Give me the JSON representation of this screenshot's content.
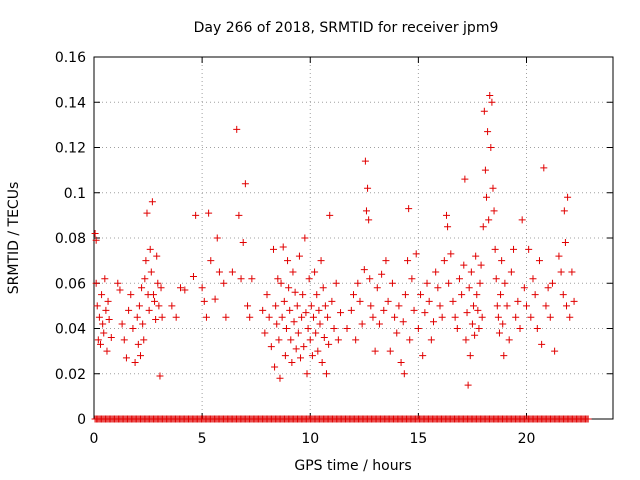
{
  "chart_data": {
    "type": "scatter",
    "title": "Day 266 of 2018, SRMTID for receiver jpm9",
    "xlabel": "GPS time / hours",
    "ylabel": "SRMTID / TECUs",
    "xlim": [
      0,
      24
    ],
    "ylim": [
      0,
      0.16
    ],
    "xticks": [
      0,
      5,
      10,
      15,
      20
    ],
    "xtick_labels": [
      "0",
      "5",
      "10",
      "15",
      "20"
    ],
    "yticks": [
      0,
      0.02,
      0.04,
      0.06,
      0.08,
      0.1,
      0.12,
      0.14,
      0.16
    ],
    "ytick_labels": [
      "0",
      "0.02",
      "0.04",
      "0.06",
      "0.08",
      "0.1",
      "0.12",
      "0.14",
      "0.16"
    ],
    "grid": true,
    "marker": "plus",
    "color": "#e00000",
    "zero_band": {
      "x_start": 0.05,
      "x_end": 22.9,
      "y": 0
    },
    "points": [
      [
        0.05,
        0.082
      ],
      [
        0.1,
        0.079
      ],
      [
        0.1,
        0.06
      ],
      [
        0.15,
        0.05
      ],
      [
        0.2,
        0.035
      ],
      [
        0.25,
        0.045
      ],
      [
        0.3,
        0.033
      ],
      [
        0.35,
        0.055
      ],
      [
        0.4,
        0.042
      ],
      [
        0.45,
        0.038
      ],
      [
        0.5,
        0.062
      ],
      [
        0.55,
        0.048
      ],
      [
        0.6,
        0.03
      ],
      [
        0.65,
        0.052
      ],
      [
        0.7,
        0.044
      ],
      [
        0.8,
        0.036
      ],
      [
        1.1,
        0.06
      ],
      [
        1.2,
        0.057
      ],
      [
        1.3,
        0.042
      ],
      [
        1.4,
        0.035
      ],
      [
        1.5,
        0.027
      ],
      [
        1.6,
        0.048
      ],
      [
        1.7,
        0.055
      ],
      [
        1.8,
        0.04
      ],
      [
        1.9,
        0.025
      ],
      [
        2.0,
        0.045
      ],
      [
        2.05,
        0.033
      ],
      [
        2.1,
        0.05
      ],
      [
        2.15,
        0.028
      ],
      [
        2.2,
        0.058
      ],
      [
        2.25,
        0.042
      ],
      [
        2.3,
        0.035
      ],
      [
        2.35,
        0.062
      ],
      [
        2.4,
        0.07
      ],
      [
        2.45,
        0.091
      ],
      [
        2.5,
        0.055
      ],
      [
        2.55,
        0.048
      ],
      [
        2.6,
        0.075
      ],
      [
        2.65,
        0.065
      ],
      [
        2.7,
        0.096
      ],
      [
        2.75,
        0.055
      ],
      [
        2.8,
        0.052
      ],
      [
        2.85,
        0.044
      ],
      [
        2.9,
        0.072
      ],
      [
        2.95,
        0.06
      ],
      [
        3.0,
        0.05
      ],
      [
        3.05,
        0.019
      ],
      [
        3.1,
        0.058
      ],
      [
        3.15,
        0.045
      ],
      [
        3.6,
        0.05
      ],
      [
        3.8,
        0.045
      ],
      [
        4.0,
        0.058
      ],
      [
        4.2,
        0.057
      ],
      [
        4.6,
        0.063
      ],
      [
        4.7,
        0.09
      ],
      [
        5.0,
        0.058
      ],
      [
        5.1,
        0.052
      ],
      [
        5.2,
        0.045
      ],
      [
        5.3,
        0.091
      ],
      [
        5.4,
        0.07
      ],
      [
        5.6,
        0.053
      ],
      [
        5.7,
        0.08
      ],
      [
        5.8,
        0.065
      ],
      [
        6.0,
        0.06
      ],
      [
        6.1,
        0.045
      ],
      [
        6.4,
        0.065
      ],
      [
        6.6,
        0.128
      ],
      [
        6.7,
        0.09
      ],
      [
        6.8,
        0.062
      ],
      [
        6.9,
        0.078
      ],
      [
        7.0,
        0.104
      ],
      [
        7.1,
        0.05
      ],
      [
        7.2,
        0.045
      ],
      [
        7.3,
        0.062
      ],
      [
        7.8,
        0.048
      ],
      [
        7.9,
        0.038
      ],
      [
        8.0,
        0.055
      ],
      [
        8.1,
        0.045
      ],
      [
        8.2,
        0.032
      ],
      [
        8.3,
        0.075
      ],
      [
        8.35,
        0.023
      ],
      [
        8.4,
        0.05
      ],
      [
        8.45,
        0.042
      ],
      [
        8.5,
        0.062
      ],
      [
        8.55,
        0.035
      ],
      [
        8.6,
        0.018
      ],
      [
        8.65,
        0.06
      ],
      [
        8.7,
        0.045
      ],
      [
        8.75,
        0.076
      ],
      [
        8.8,
        0.052
      ],
      [
        8.85,
        0.028
      ],
      [
        8.9,
        0.04
      ],
      [
        8.95,
        0.07
      ],
      [
        9.0,
        0.058
      ],
      [
        9.05,
        0.048
      ],
      [
        9.1,
        0.035
      ],
      [
        9.15,
        0.025
      ],
      [
        9.2,
        0.065
      ],
      [
        9.25,
        0.043
      ],
      [
        9.3,
        0.056
      ],
      [
        9.35,
        0.031
      ],
      [
        9.4,
        0.05
      ],
      [
        9.45,
        0.038
      ],
      [
        9.5,
        0.072
      ],
      [
        9.55,
        0.027
      ],
      [
        9.6,
        0.045
      ],
      [
        9.65,
        0.055
      ],
      [
        9.7,
        0.032
      ],
      [
        9.75,
        0.08
      ],
      [
        9.8,
        0.047
      ],
      [
        9.85,
        0.02
      ],
      [
        9.9,
        0.04
      ],
      [
        9.95,
        0.062
      ],
      [
        10.0,
        0.035
      ],
      [
        10.05,
        0.05
      ],
      [
        10.1,
        0.028
      ],
      [
        10.15,
        0.045
      ],
      [
        10.2,
        0.065
      ],
      [
        10.25,
        0.038
      ],
      [
        10.3,
        0.055
      ],
      [
        10.35,
        0.03
      ],
      [
        10.4,
        0.048
      ],
      [
        10.45,
        0.042
      ],
      [
        10.5,
        0.07
      ],
      [
        10.55,
        0.025
      ],
      [
        10.6,
        0.058
      ],
      [
        10.65,
        0.036
      ],
      [
        10.7,
        0.05
      ],
      [
        10.75,
        0.02
      ],
      [
        10.8,
        0.045
      ],
      [
        10.85,
        0.033
      ],
      [
        10.9,
        0.09
      ],
      [
        11.0,
        0.052
      ],
      [
        11.1,
        0.04
      ],
      [
        11.2,
        0.06
      ],
      [
        11.3,
        0.035
      ],
      [
        11.4,
        0.047
      ],
      [
        11.7,
        0.04
      ],
      [
        11.9,
        0.048
      ],
      [
        12.0,
        0.055
      ],
      [
        12.1,
        0.035
      ],
      [
        12.2,
        0.06
      ],
      [
        12.3,
        0.052
      ],
      [
        12.4,
        0.042
      ],
      [
        12.5,
        0.066
      ],
      [
        12.55,
        0.114
      ],
      [
        12.6,
        0.092
      ],
      [
        12.65,
        0.102
      ],
      [
        12.7,
        0.088
      ],
      [
        12.75,
        0.062
      ],
      [
        12.8,
        0.05
      ],
      [
        12.9,
        0.045
      ],
      [
        13.0,
        0.03
      ],
      [
        13.1,
        0.058
      ],
      [
        13.2,
        0.042
      ],
      [
        13.3,
        0.064
      ],
      [
        13.4,
        0.048
      ],
      [
        13.5,
        0.07
      ],
      [
        13.6,
        0.052
      ],
      [
        13.7,
        0.03
      ],
      [
        13.8,
        0.06
      ],
      [
        13.9,
        0.045
      ],
      [
        14.0,
        0.038
      ],
      [
        14.1,
        0.05
      ],
      [
        14.2,
        0.025
      ],
      [
        14.3,
        0.043
      ],
      [
        14.35,
        0.02
      ],
      [
        14.4,
        0.055
      ],
      [
        14.5,
        0.07
      ],
      [
        14.55,
        0.093
      ],
      [
        14.6,
        0.035
      ],
      [
        14.7,
        0.062
      ],
      [
        14.8,
        0.048
      ],
      [
        14.9,
        0.073
      ],
      [
        15.0,
        0.04
      ],
      [
        15.1,
        0.055
      ],
      [
        15.2,
        0.028
      ],
      [
        15.3,
        0.047
      ],
      [
        15.4,
        0.06
      ],
      [
        15.5,
        0.052
      ],
      [
        15.6,
        0.035
      ],
      [
        15.7,
        0.043
      ],
      [
        15.8,
        0.065
      ],
      [
        15.9,
        0.058
      ],
      [
        16.0,
        0.05
      ],
      [
        16.1,
        0.045
      ],
      [
        16.2,
        0.07
      ],
      [
        16.3,
        0.09
      ],
      [
        16.35,
        0.085
      ],
      [
        16.4,
        0.06
      ],
      [
        16.5,
        0.073
      ],
      [
        16.6,
        0.052
      ],
      [
        16.7,
        0.045
      ],
      [
        16.8,
        0.04
      ],
      [
        16.9,
        0.062
      ],
      [
        17.0,
        0.055
      ],
      [
        17.1,
        0.068
      ],
      [
        17.15,
        0.106
      ],
      [
        17.2,
        0.035
      ],
      [
        17.25,
        0.047
      ],
      [
        17.3,
        0.015
      ],
      [
        17.35,
        0.058
      ],
      [
        17.4,
        0.028
      ],
      [
        17.45,
        0.065
      ],
      [
        17.5,
        0.042
      ],
      [
        17.55,
        0.05
      ],
      [
        17.6,
        0.037
      ],
      [
        17.65,
        0.072
      ],
      [
        17.7,
        0.055
      ],
      [
        17.75,
        0.048
      ],
      [
        17.8,
        0.04
      ],
      [
        17.85,
        0.06
      ],
      [
        17.9,
        0.068
      ],
      [
        17.95,
        0.045
      ],
      [
        18.0,
        0.085
      ],
      [
        18.05,
        0.136
      ],
      [
        18.1,
        0.11
      ],
      [
        18.15,
        0.098
      ],
      [
        18.2,
        0.127
      ],
      [
        18.25,
        0.088
      ],
      [
        18.3,
        0.143
      ],
      [
        18.35,
        0.12
      ],
      [
        18.4,
        0.14
      ],
      [
        18.45,
        0.102
      ],
      [
        18.5,
        0.092
      ],
      [
        18.55,
        0.075
      ],
      [
        18.6,
        0.062
      ],
      [
        18.65,
        0.05
      ],
      [
        18.7,
        0.045
      ],
      [
        18.75,
        0.038
      ],
      [
        18.8,
        0.055
      ],
      [
        18.85,
        0.07
      ],
      [
        18.9,
        0.042
      ],
      [
        18.95,
        0.028
      ],
      [
        19.0,
        0.06
      ],
      [
        19.1,
        0.05
      ],
      [
        19.2,
        0.035
      ],
      [
        19.3,
        0.065
      ],
      [
        19.4,
        0.075
      ],
      [
        19.5,
        0.045
      ],
      [
        19.6,
        0.052
      ],
      [
        19.7,
        0.04
      ],
      [
        19.8,
        0.088
      ],
      [
        19.9,
        0.058
      ],
      [
        20.0,
        0.05
      ],
      [
        20.1,
        0.075
      ],
      [
        20.2,
        0.045
      ],
      [
        20.3,
        0.062
      ],
      [
        20.4,
        0.055
      ],
      [
        20.5,
        0.04
      ],
      [
        20.6,
        0.07
      ],
      [
        20.7,
        0.033
      ],
      [
        20.8,
        0.111
      ],
      [
        20.9,
        0.05
      ],
      [
        21.0,
        0.058
      ],
      [
        21.1,
        0.045
      ],
      [
        21.2,
        0.06
      ],
      [
        21.3,
        0.03
      ],
      [
        21.5,
        0.072
      ],
      [
        21.6,
        0.065
      ],
      [
        21.7,
        0.055
      ],
      [
        21.75,
        0.092
      ],
      [
        21.8,
        0.078
      ],
      [
        21.85,
        0.05
      ],
      [
        21.9,
        0.098
      ],
      [
        22.0,
        0.045
      ],
      [
        22.1,
        0.065
      ],
      [
        22.2,
        0.052
      ]
    ]
  }
}
